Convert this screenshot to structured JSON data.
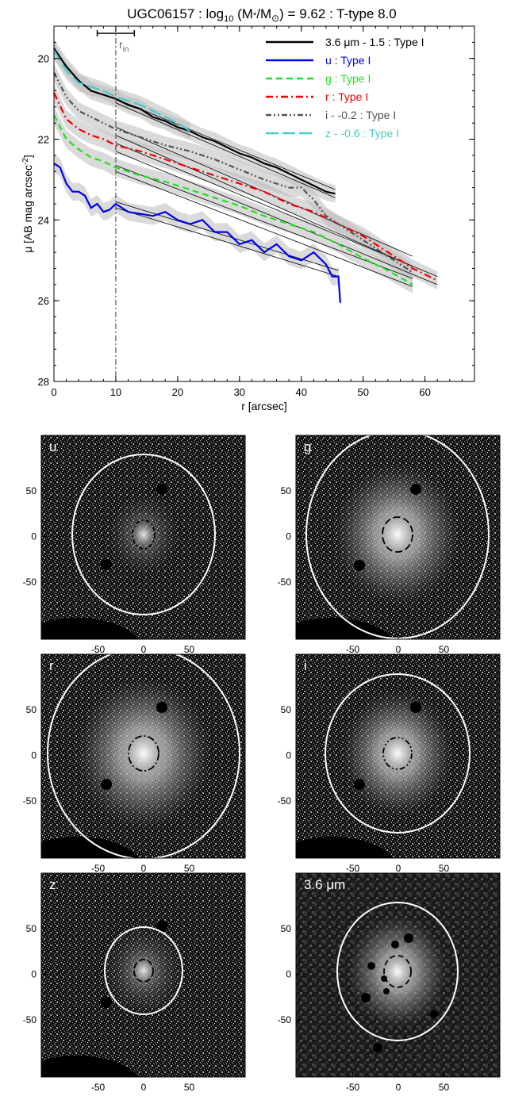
{
  "chart_data": [
    {
      "type": "line",
      "title": "UGC06157 : log",
      "title_sub": "10",
      "title_mid": " (M",
      "title_star": "*",
      "title_mid2": "/M",
      "title_sun": "⊙",
      "title_end": ") = 9.62 : T-type 8.0",
      "xlabel": "r [arcsec]",
      "ylabel_main": "μ [AB mag arcsec",
      "ylabel_sup": "-2",
      "ylabel_end": "]",
      "xlim": [
        0,
        68
      ],
      "ylim": [
        28,
        19.2
      ],
      "y_inverted": true,
      "xticks": [
        0,
        10,
        20,
        30,
        40,
        50,
        60
      ],
      "yticks": [
        20,
        22,
        24,
        26,
        28
      ],
      "r_in": 10,
      "r_in_label": "r",
      "r_in_sub": "in",
      "r_in_error": [
        7,
        13
      ],
      "legend_position": "top-right",
      "series": [
        {
          "name": "3.6 μm - 1.5 : Type I",
          "color": "#000000",
          "dash": "",
          "x": [
            0,
            2,
            4,
            6,
            8,
            10,
            12,
            14,
            16,
            18,
            20,
            22,
            24,
            26,
            28,
            30,
            32,
            34,
            36,
            38,
            40,
            42,
            44,
            45.5
          ],
          "y": [
            19.75,
            20.2,
            20.55,
            20.8,
            20.9,
            21.0,
            21.15,
            21.25,
            21.45,
            21.55,
            21.7,
            21.8,
            21.95,
            22.05,
            22.2,
            22.35,
            22.45,
            22.6,
            22.7,
            22.85,
            23.0,
            23.15,
            23.3,
            23.35
          ]
        },
        {
          "name": "u : Type I",
          "color": "#0000ee",
          "dash": "",
          "x": [
            0,
            1,
            2,
            3,
            4,
            5,
            6,
            7,
            8,
            9,
            10,
            12,
            14,
            16,
            18,
            20,
            22,
            24,
            26,
            28,
            30,
            32,
            34,
            36,
            38,
            40,
            42,
            44,
            45,
            46,
            46.3
          ],
          "y": [
            22.6,
            22.7,
            23.1,
            23.3,
            23.3,
            23.4,
            23.7,
            23.6,
            23.8,
            23.75,
            23.6,
            23.8,
            23.85,
            23.9,
            23.8,
            24.0,
            24.1,
            24.0,
            24.3,
            24.3,
            24.6,
            24.5,
            24.8,
            24.6,
            24.9,
            25.0,
            24.8,
            25.1,
            25.4,
            25.4,
            26.05
          ]
        },
        {
          "name": "g : Type I",
          "color": "#22dd22",
          "dash": "8,5",
          "x": [
            0,
            2,
            4,
            6,
            8,
            10,
            14,
            18,
            22,
            26,
            30,
            34,
            38,
            42,
            46,
            50,
            54,
            58
          ],
          "y": [
            21.4,
            22.0,
            22.25,
            22.45,
            22.55,
            22.7,
            22.9,
            23.05,
            23.25,
            23.45,
            23.65,
            23.9,
            24.1,
            24.3,
            24.6,
            24.95,
            25.25,
            25.6
          ]
        },
        {
          "name": "r : Type I",
          "color": "#ee0000",
          "dash": "9,4,2,4",
          "x": [
            0,
            2,
            4,
            6,
            8,
            10,
            14,
            18,
            22,
            26,
            30,
            34,
            38,
            42,
            46,
            50,
            54,
            58,
            62
          ],
          "y": [
            20.85,
            21.5,
            21.75,
            21.9,
            22.0,
            22.15,
            22.3,
            22.5,
            22.7,
            22.9,
            23.1,
            23.3,
            23.6,
            23.8,
            24.1,
            24.4,
            24.8,
            25.2,
            25.5
          ]
        },
        {
          "name": "i - -0.2 : Type I",
          "color": "#555555",
          "dash": "7,3,2,3,2,3",
          "x": [
            0,
            2,
            4,
            6,
            8,
            10,
            14,
            18,
            22,
            26,
            30,
            34,
            38,
            40,
            42,
            44,
            46,
            50,
            54,
            58
          ],
          "y": [
            20.35,
            20.95,
            21.3,
            21.45,
            21.6,
            21.75,
            21.95,
            22.15,
            22.3,
            22.5,
            22.75,
            23.0,
            23.2,
            23.2,
            23.5,
            23.9,
            24.1,
            24.5,
            24.9,
            25.3
          ]
        },
        {
          "name": "z - -0.6 : Type I",
          "color": "#44cccc",
          "dash": "16,5",
          "x": [
            0,
            2,
            4,
            6,
            8,
            10,
            12,
            14,
            16,
            18,
            20,
            22
          ],
          "y": [
            19.8,
            20.3,
            20.6,
            20.7,
            20.8,
            20.95,
            21.05,
            21.15,
            21.3,
            21.45,
            21.6,
            21.8
          ]
        }
      ],
      "fit_lines": [
        {
          "x": [
            10,
            45.5
          ],
          "y": [
            21.0,
            23.25
          ]
        },
        {
          "x": [
            10,
            45.5
          ],
          "y": [
            21.1,
            23.45
          ]
        },
        {
          "x": [
            10,
            46
          ],
          "y": [
            23.55,
            25.25
          ]
        },
        {
          "x": [
            10,
            46
          ],
          "y": [
            23.7,
            25.4
          ]
        },
        {
          "x": [
            10,
            58
          ],
          "y": [
            22.65,
            25.45
          ]
        },
        {
          "x": [
            10,
            58
          ],
          "y": [
            22.8,
            25.65
          ]
        },
        {
          "x": [
            10,
            62
          ],
          "y": [
            22.1,
            25.4
          ]
        },
        {
          "x": [
            10,
            62
          ],
          "y": [
            22.3,
            25.6
          ]
        },
        {
          "x": [
            10,
            58
          ],
          "y": [
            21.7,
            24.9
          ]
        },
        {
          "x": [
            10,
            58
          ],
          "y": [
            21.9,
            25.15
          ]
        }
      ]
    },
    {
      "type": "image",
      "label": "u",
      "xticks": [
        -50,
        0,
        50
      ],
      "yticks": [
        50,
        0,
        -50
      ]
    },
    {
      "type": "image",
      "label": "g",
      "xticks": [
        -50,
        0,
        50
      ],
      "yticks": [
        50,
        0,
        -50
      ]
    },
    {
      "type": "image",
      "label": "r",
      "xticks": [
        -50,
        0,
        50
      ],
      "yticks": [
        50,
        0,
        -50
      ]
    },
    {
      "type": "image",
      "label": "i",
      "xticks": [
        -50,
        0,
        50
      ],
      "yticks": [
        50,
        0,
        -50
      ]
    },
    {
      "type": "image",
      "label": "z",
      "xticks": [
        -50,
        0,
        50
      ],
      "yticks": [
        50,
        0,
        -50
      ]
    },
    {
      "type": "image",
      "label": "3.6 μm",
      "xticks": [
        -50,
        0,
        50
      ],
      "yticks": [
        50,
        0,
        -50
      ]
    }
  ]
}
